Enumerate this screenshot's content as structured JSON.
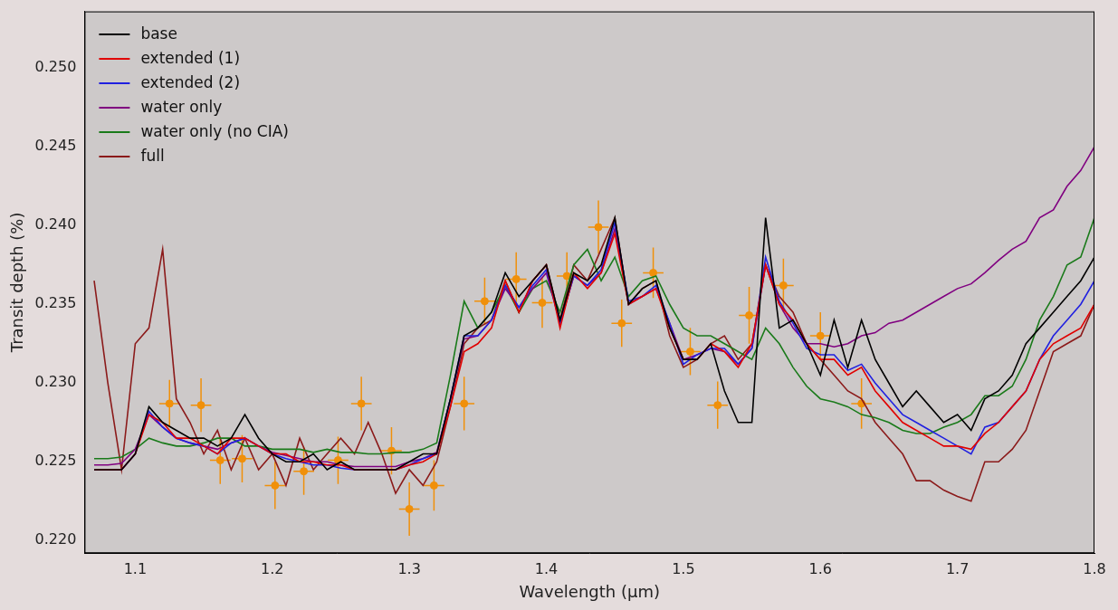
{
  "chart_data": {
    "type": "line",
    "x_label": "Wavelength (μm)",
    "y_label": "Transit depth (%)",
    "xlim": [
      1.063,
      1.8
    ],
    "xticks": [
      1.1,
      1.2,
      1.3,
      1.4,
      1.5,
      1.6,
      1.7,
      1.8
    ],
    "ylim": [
      0.2192,
      0.2536
    ],
    "yticks": [
      {
        "value": 0.22,
        "label": "0.220"
      },
      0.225,
      {
        "value": 0.23,
        "label": "0.230"
      },
      0.235,
      {
        "value": 0.24,
        "label": "0.240"
      },
      0.245,
      {
        "value": 0.25,
        "label": "0.250"
      }
    ],
    "grid": false,
    "legend": "upper left",
    "x": [
      1.07,
      1.08,
      1.09,
      1.1,
      1.11,
      1.12,
      1.13,
      1.14,
      1.15,
      1.16,
      1.17,
      1.18,
      1.19,
      1.2,
      1.21,
      1.22,
      1.23,
      1.24,
      1.25,
      1.26,
      1.27,
      1.28,
      1.29,
      1.3,
      1.31,
      1.32,
      1.33,
      1.34,
      1.35,
      1.36,
      1.37,
      1.38,
      1.39,
      1.4,
      1.41,
      1.42,
      1.43,
      1.44,
      1.45,
      1.46,
      1.47,
      1.48,
      1.49,
      1.5,
      1.51,
      1.52,
      1.53,
      1.54,
      1.55,
      1.56,
      1.57,
      1.58,
      1.59,
      1.6,
      1.61,
      1.62,
      1.63,
      1.64,
      1.65,
      1.66,
      1.67,
      1.68,
      1.69,
      1.7,
      1.71,
      1.72,
      1.73,
      1.74,
      1.75,
      1.76,
      1.77,
      1.78,
      1.79,
      1.8
    ],
    "series": [
      {
        "name": "base",
        "color": "#000000",
        "values": [
          0.2245,
          0.2245,
          0.2245,
          0.2255,
          0.2285,
          0.2275,
          0.227,
          0.2265,
          0.2265,
          0.226,
          0.2265,
          0.228,
          0.2265,
          0.2255,
          0.225,
          0.225,
          0.2255,
          0.2245,
          0.225,
          0.2245,
          0.2245,
          0.2245,
          0.2245,
          0.225,
          0.2255,
          0.2255,
          0.229,
          0.233,
          0.2335,
          0.2345,
          0.237,
          0.2355,
          0.2365,
          0.2375,
          0.234,
          0.237,
          0.2365,
          0.2375,
          0.2405,
          0.235,
          0.236,
          0.2365,
          0.2335,
          0.2315,
          0.2315,
          0.2325,
          0.2295,
          0.2275,
          0.2275,
          0.2405,
          0.2335,
          0.234,
          0.2325,
          0.2305,
          0.234,
          0.231,
          0.234,
          0.2315,
          0.23,
          0.2285,
          0.2295,
          0.2285,
          0.2275,
          0.228,
          0.227,
          0.229,
          0.2295,
          0.2305,
          0.2325,
          0.2335,
          0.2345,
          0.2355,
          0.2365,
          0.238
        ]
      },
      {
        "name": "extended (1)",
        "color": "#e00000",
        "values": [
          0.2245,
          0.2245,
          0.2245,
          0.2255,
          0.228,
          0.2275,
          0.2265,
          0.2265,
          0.226,
          0.2255,
          0.2265,
          0.2265,
          0.226,
          0.2255,
          0.2255,
          0.225,
          0.225,
          0.2248,
          0.2248,
          0.2245,
          0.2245,
          0.2245,
          0.2245,
          0.2248,
          0.225,
          0.2255,
          0.2285,
          0.232,
          0.2325,
          0.2335,
          0.2365,
          0.2345,
          0.2365,
          0.2375,
          0.2335,
          0.237,
          0.236,
          0.237,
          0.2395,
          0.235,
          0.2355,
          0.236,
          0.2335,
          0.2315,
          0.2315,
          0.2325,
          0.232,
          0.231,
          0.2325,
          0.2375,
          0.235,
          0.234,
          0.2325,
          0.2315,
          0.2315,
          0.2305,
          0.231,
          0.2295,
          0.2285,
          0.2275,
          0.227,
          0.2265,
          0.226,
          0.226,
          0.2258,
          0.2268,
          0.2275,
          0.2285,
          0.2295,
          0.2315,
          0.2325,
          0.233,
          0.2335,
          0.235
        ]
      },
      {
        "name": "extended (2)",
        "color": "#2020e0",
        "values": [
          0.2245,
          0.2245,
          0.2245,
          0.2255,
          0.2282,
          0.2272,
          0.2265,
          0.2262,
          0.226,
          0.2255,
          0.2262,
          0.2265,
          0.226,
          0.2255,
          0.2252,
          0.225,
          0.2248,
          0.2248,
          0.2246,
          0.2245,
          0.2245,
          0.2245,
          0.2245,
          0.2248,
          0.2252,
          0.2255,
          0.229,
          0.233,
          0.233,
          0.234,
          0.2362,
          0.2348,
          0.2362,
          0.2372,
          0.2338,
          0.2368,
          0.2362,
          0.2372,
          0.2402,
          0.2352,
          0.2355,
          0.2362,
          0.2338,
          0.2312,
          0.2318,
          0.2322,
          0.2322,
          0.2312,
          0.2322,
          0.238,
          0.2352,
          0.2338,
          0.2322,
          0.2318,
          0.2318,
          0.2308,
          0.2312,
          0.23,
          0.229,
          0.228,
          0.2275,
          0.227,
          0.2265,
          0.226,
          0.2255,
          0.2272,
          0.2275,
          0.2285,
          0.2295,
          0.2315,
          0.233,
          0.234,
          0.235,
          0.2365
        ]
      },
      {
        "name": "water only",
        "color": "#800080",
        "values": [
          0.2248,
          0.2248,
          0.2249,
          0.2258,
          0.228,
          0.2272,
          0.2265,
          0.2262,
          0.226,
          0.2258,
          0.2262,
          0.2265,
          0.226,
          0.2256,
          0.2254,
          0.2252,
          0.225,
          0.225,
          0.2248,
          0.2247,
          0.2247,
          0.2247,
          0.2247,
          0.225,
          0.2252,
          0.2256,
          0.229,
          0.2328,
          0.233,
          0.234,
          0.236,
          0.2348,
          0.236,
          0.237,
          0.2338,
          0.2368,
          0.2362,
          0.237,
          0.2398,
          0.235,
          0.2355,
          0.236,
          0.2338,
          0.2315,
          0.2318,
          0.2322,
          0.232,
          0.2312,
          0.2322,
          0.2375,
          0.235,
          0.2335,
          0.2325,
          0.2325,
          0.2323,
          0.2325,
          0.233,
          0.2332,
          0.2338,
          0.234,
          0.2345,
          0.235,
          0.2355,
          0.236,
          0.2363,
          0.237,
          0.2378,
          0.2385,
          0.239,
          0.2405,
          0.241,
          0.2425,
          0.2435,
          0.245
        ]
      },
      {
        "name": "water only (no CIA)",
        "color": "#1a7a1a",
        "values": [
          0.2252,
          0.2252,
          0.2253,
          0.2258,
          0.2265,
          0.2262,
          0.226,
          0.226,
          0.2262,
          0.2265,
          0.2265,
          0.226,
          0.226,
          0.2258,
          0.2258,
          0.2258,
          0.2256,
          0.2258,
          0.2256,
          0.2256,
          0.2255,
          0.2255,
          0.2256,
          0.2256,
          0.2258,
          0.2262,
          0.2305,
          0.2352,
          0.2335,
          0.2345,
          0.2362,
          0.2345,
          0.236,
          0.2365,
          0.2345,
          0.2375,
          0.2385,
          0.2365,
          0.238,
          0.2355,
          0.2365,
          0.2368,
          0.235,
          0.2335,
          0.233,
          0.233,
          0.2325,
          0.232,
          0.2315,
          0.2335,
          0.2325,
          0.231,
          0.2298,
          0.229,
          0.2288,
          0.2285,
          0.228,
          0.2278,
          0.2275,
          0.227,
          0.2268,
          0.2268,
          0.2272,
          0.2275,
          0.228,
          0.2292,
          0.2292,
          0.2298,
          0.2315,
          0.234,
          0.2355,
          0.2375,
          0.238,
          0.2405
        ]
      },
      {
        "name": "full",
        "color": "#8b1a1a",
        "values": [
          0.2365,
          0.23,
          0.2245,
          0.2325,
          0.2335,
          0.2385,
          0.229,
          0.2275,
          0.2255,
          0.227,
          0.2245,
          0.2265,
          0.2245,
          0.2255,
          0.2235,
          0.2265,
          0.2245,
          0.2255,
          0.2265,
          0.2255,
          0.2275,
          0.2255,
          0.223,
          0.2245,
          0.2235,
          0.225,
          0.2285,
          0.2325,
          0.2335,
          0.234,
          0.2365,
          0.2345,
          0.2365,
          0.2375,
          0.234,
          0.2375,
          0.2365,
          0.2385,
          0.2405,
          0.235,
          0.236,
          0.2365,
          0.233,
          0.231,
          0.2315,
          0.2325,
          0.233,
          0.2315,
          0.2325,
          0.2375,
          0.2355,
          0.2345,
          0.2325,
          0.2315,
          0.2305,
          0.2295,
          0.229,
          0.2275,
          0.2265,
          0.2255,
          0.2238,
          0.2238,
          0.2232,
          0.2228,
          0.2225,
          0.225,
          0.225,
          0.2258,
          0.227,
          0.2295,
          0.232,
          0.2325,
          0.233,
          0.235
        ]
      }
    ],
    "errorbar_points": {
      "type": "scatter",
      "marker": "circle",
      "color": "#f0900a",
      "x": [
        1.125,
        1.148,
        1.162,
        1.178,
        1.202,
        1.223,
        1.248,
        1.265,
        1.287,
        1.3,
        1.318,
        1.34,
        1.355,
        1.378,
        1.397,
        1.415,
        1.438,
        1.455,
        1.478,
        1.505,
        1.525,
        1.548,
        1.573,
        1.6,
        1.63
      ],
      "values": [
        0.2287,
        0.2286,
        0.2251,
        0.2252,
        0.2235,
        0.2244,
        0.2251,
        0.2287,
        0.2257,
        0.222,
        0.2235,
        0.2287,
        0.2352,
        0.2366,
        0.2351,
        0.2368,
        0.2399,
        0.2338,
        0.237,
        0.232,
        0.2286,
        0.2343,
        0.2362,
        0.233,
        0.2287
      ],
      "x_error": [
        0.0075,
        0.0075,
        0.0075,
        0.0075,
        0.0075,
        0.0075,
        0.0075,
        0.0075,
        0.0075,
        0.0075,
        0.0075,
        0.0075,
        0.0075,
        0.0075,
        0.0075,
        0.0075,
        0.0075,
        0.0075,
        0.0075,
        0.0075,
        0.0075,
        0.0075,
        0.0075,
        0.0075,
        0.0075
      ],
      "y_error": [
        0.0015,
        0.0017,
        0.0015,
        0.0015,
        0.0015,
        0.0015,
        0.0015,
        0.0017,
        0.0015,
        0.0017,
        0.0016,
        0.0017,
        0.0015,
        0.0017,
        0.0016,
        0.0015,
        0.0017,
        0.0015,
        0.0016,
        0.0015,
        0.0015,
        0.0018,
        0.0017,
        0.0015,
        0.0016
      ]
    }
  }
}
